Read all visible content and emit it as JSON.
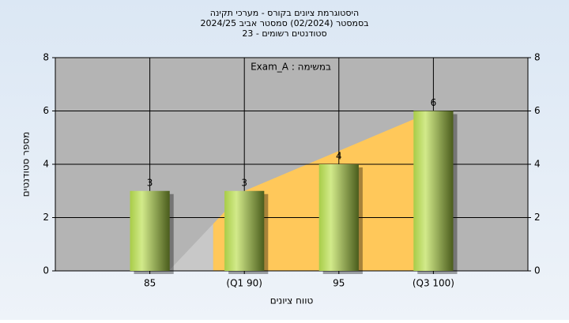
{
  "chart_data": {
    "type": "bar",
    "title": [
      "היסטוגרמת ציונים בקורס - מערכי תקינה",
      "בסמסטר  (02/2024)  סמסטר אביב 2024/25",
      "סטודנטים רשומים - 23"
    ],
    "annotation": "Exam_A : במשימה",
    "x_label": "טווח ציונים",
    "y_label": "מספר סטודנטים",
    "categories": [
      "85",
      "(Q1 90)",
      "95",
      "(Q3 100)"
    ],
    "values": [
      3,
      3,
      4,
      6
    ],
    "ylim": [
      0,
      8
    ],
    "yticks": [
      0,
      2,
      4,
      6,
      8
    ],
    "y2lim": [
      0,
      8
    ],
    "y2ticks": [
      0,
      2,
      4,
      6,
      8
    ],
    "grid": true,
    "color": "#9fc23e",
    "area_color": "#ffc85a"
  }
}
